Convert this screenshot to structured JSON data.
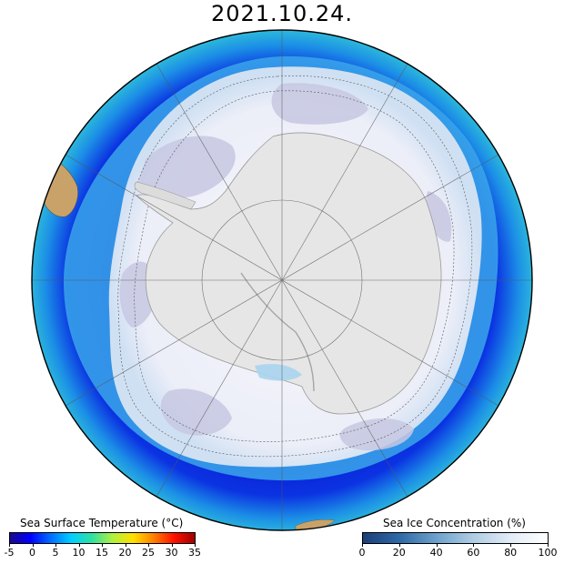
{
  "title": "2021.10.24.",
  "map": {
    "projection": "south-polar-stereographic",
    "colors": {
      "ocean_cold": "#0a1fd6",
      "ocean_warm": "#2fb3e3",
      "ocean_warmest": "#58d07a",
      "ice_high": "#f4f4fb",
      "ice_mid": "#d9dcef",
      "ice_low": "#b8b9da",
      "antarctica": "#e6e6e6",
      "land": "#c9a26a"
    }
  },
  "sst_colorbar": {
    "title": "Sea Surface Temperature (°C)",
    "ticks": [
      "-5",
      "0",
      "5",
      "10",
      "15",
      "20",
      "25",
      "30",
      "35"
    ],
    "gradient": [
      "#1a0a8c",
      "#0000ff",
      "#0070ff",
      "#00d0ff",
      "#30e0a0",
      "#b0f040",
      "#ffe000",
      "#ff8000",
      "#ff1000",
      "#a00000"
    ]
  },
  "ice_colorbar": {
    "title": "Sea Ice Concentration (%)",
    "ticks": [
      "0",
      "20",
      "40",
      "60",
      "80",
      "100"
    ],
    "gradient": [
      "#1c3f7a",
      "#2e6aa7",
      "#6ea2cc",
      "#b0cde4",
      "#e2ecf6",
      "#ffffff"
    ]
  }
}
